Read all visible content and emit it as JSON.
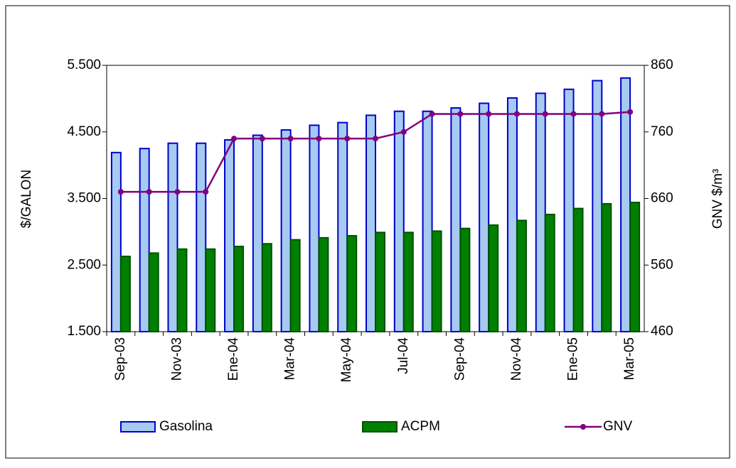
{
  "chart_data": {
    "type": "bar_line",
    "y_label": "$/GALON",
    "y2_label": "GNV $/m³",
    "categories": [
      "Sep-03",
      null,
      "Nov-03",
      null,
      "Ene-04",
      null,
      "Mar-04",
      null,
      "May-04",
      null,
      "Jul-04",
      null,
      "Sep-04",
      null,
      "Nov-04",
      null,
      "Ene-05",
      null,
      "Mar-05"
    ],
    "series": [
      {
        "name": "Gasolina",
        "type": "bar",
        "color": "#a6caf0",
        "edge": "#0000cc",
        "values": [
          4190,
          4250,
          4330,
          4330,
          4380,
          4450,
          4530,
          4600,
          4640,
          4750,
          4810,
          4810,
          4860,
          4930,
          5010,
          5080,
          5140,
          5270,
          5310
        ]
      },
      {
        "name": "ACPM",
        "type": "bar",
        "color": "#008000",
        "edge": "#005000",
        "values": [
          2630,
          2680,
          2740,
          2740,
          2780,
          2820,
          2880,
          2910,
          2940,
          2990,
          2990,
          3010,
          3050,
          3100,
          3170,
          3260,
          3350,
          3420,
          3440
        ]
      },
      {
        "name": "GNV",
        "type": "line",
        "axis": "y2",
        "color": "#800080",
        "values": [
          670,
          670,
          670,
          670,
          750,
          750,
          750,
          750,
          750,
          750,
          760,
          787,
          787,
          787,
          787,
          787,
          787,
          787,
          790
        ]
      }
    ],
    "ylim": [
      1500,
      5500
    ],
    "yticks": [
      {
        "value": 1500,
        "label": "1.500"
      },
      {
        "value": 2500,
        "label": "2.500"
      },
      {
        "value": 3500,
        "label": "3.500"
      },
      {
        "value": 4500,
        "label": "4.500"
      },
      {
        "value": 5500,
        "label": "5.500"
      }
    ],
    "y2lim": [
      460,
      860
    ],
    "y2ticks": [
      460,
      560,
      660,
      760,
      860
    ]
  }
}
